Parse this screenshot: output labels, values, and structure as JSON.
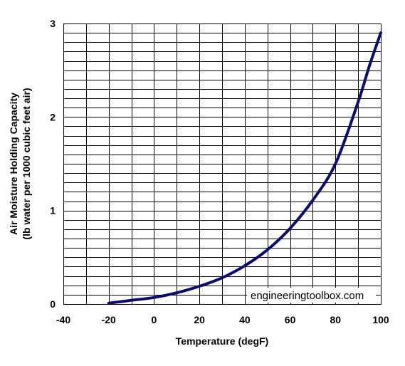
{
  "chart_data": {
    "type": "line",
    "xlabel": "Temperature (degF)",
    "ylabel_lines": [
      "Air Moisture Holding Capacity",
      "(lb water per 1000 cubic feet air)"
    ],
    "xlim": [
      -40,
      100
    ],
    "ylim": [
      0,
      3
    ],
    "x_ticks": [
      -40,
      -20,
      0,
      20,
      40,
      60,
      80,
      100
    ],
    "y_ticks": [
      0,
      1,
      2,
      3
    ],
    "grid": true,
    "watermark": "engineeringtoolbox.com",
    "colors": {
      "line": "#0b0b70",
      "grid": "#000000",
      "background": "#ffffff"
    },
    "series": [
      {
        "x": [
          -20,
          -10,
          0,
          10,
          20,
          30,
          40,
          50,
          60,
          70,
          80,
          90,
          95,
          100
        ],
        "y": [
          0.01,
          0.04,
          0.07,
          0.12,
          0.19,
          0.28,
          0.41,
          0.58,
          0.81,
          1.11,
          1.5,
          2.16,
          2.55,
          2.9
        ]
      }
    ]
  }
}
